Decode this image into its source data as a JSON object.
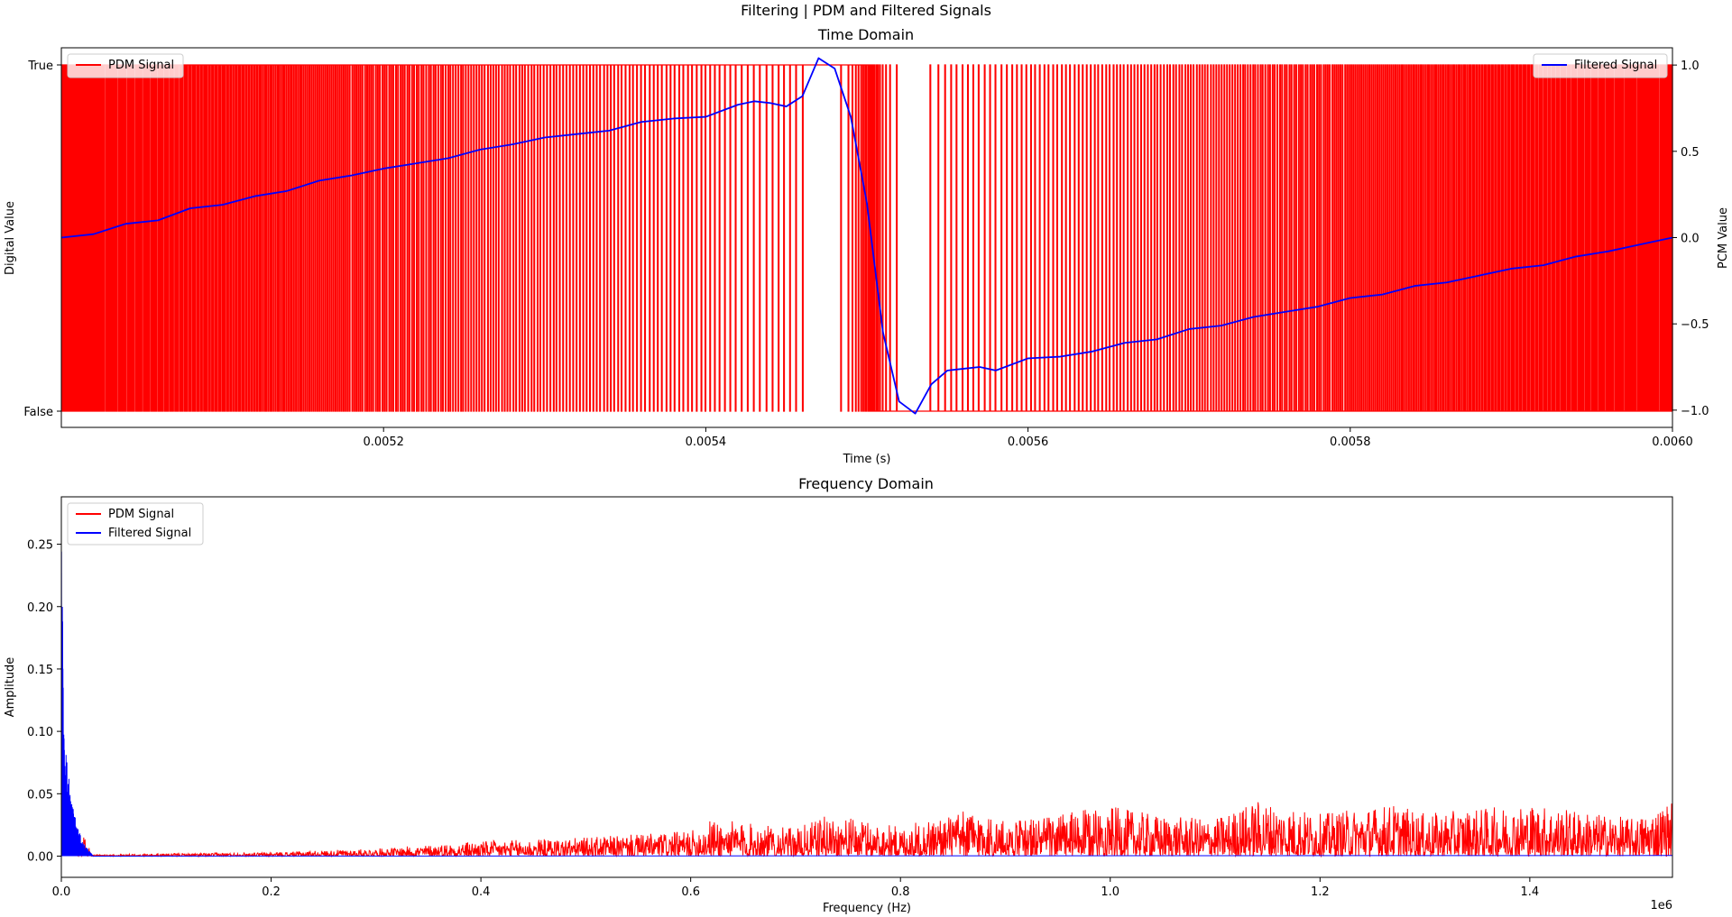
{
  "suptitle": "Filtering | PDM and Filtered Signals",
  "chart_data": [
    {
      "type": "line",
      "title": "Time Domain",
      "xlabel": "Time (s)",
      "ylabel": "Digital Value",
      "ylabel_right": "PCM Value",
      "xlim": [
        0.005,
        0.006
      ],
      "xticks": [
        "0.0052",
        "0.0054",
        "0.0056",
        "0.0058",
        "0.0060"
      ],
      "yticks_left": [
        "False",
        "True"
      ],
      "ylim_right": [
        -1.1,
        1.1
      ],
      "yticks_right": [
        "−1.0",
        "−0.5",
        "0.0",
        "0.5",
        "1.0"
      ],
      "legend_left": "upper-left",
      "legend_right": "upper-right",
      "series": [
        {
          "name": "PDM Signal",
          "color": "#ff0000",
          "kind": "digital",
          "note_density": "mostly_true_then_mostly_false"
        },
        {
          "name": "Filtered Signal",
          "color": "#0000ff",
          "x": [
            0.005,
            0.00502,
            0.00504,
            0.00506,
            0.00508,
            0.0051,
            0.00512,
            0.00514,
            0.00516,
            0.00518,
            0.0052,
            0.00522,
            0.00524,
            0.00526,
            0.00528,
            0.0053,
            0.00532,
            0.00534,
            0.00536,
            0.00538,
            0.0054,
            0.00542,
            0.00543,
            0.00544,
            0.00545,
            0.00546,
            0.00547,
            0.00548,
            0.00549,
            0.0055,
            0.00551,
            0.00552,
            0.00553,
            0.00554,
            0.00555,
            0.00556,
            0.00557,
            0.00558,
            0.0056,
            0.00562,
            0.00564,
            0.00566,
            0.00568,
            0.0057,
            0.00572,
            0.00574,
            0.00576,
            0.00578,
            0.0058,
            0.00582,
            0.00584,
            0.00586,
            0.00588,
            0.0059,
            0.00592,
            0.00594,
            0.00596,
            0.00598,
            0.006
          ],
          "y": [
            0.0,
            0.02,
            0.08,
            0.1,
            0.17,
            0.19,
            0.24,
            0.27,
            0.33,
            0.36,
            0.4,
            0.43,
            0.46,
            0.51,
            0.54,
            0.58,
            0.6,
            0.62,
            0.67,
            0.69,
            0.7,
            0.77,
            0.79,
            0.78,
            0.76,
            0.82,
            1.04,
            0.98,
            0.7,
            0.2,
            -0.55,
            -0.95,
            -1.02,
            -0.85,
            -0.77,
            -0.76,
            -0.75,
            -0.77,
            -0.7,
            -0.69,
            -0.66,
            -0.61,
            -0.59,
            -0.53,
            -0.51,
            -0.46,
            -0.43,
            -0.4,
            -0.35,
            -0.33,
            -0.28,
            -0.26,
            -0.22,
            -0.18,
            -0.16,
            -0.11,
            -0.08,
            -0.04,
            0.0
          ]
        }
      ]
    },
    {
      "type": "line",
      "title": "Frequency Domain",
      "xlabel": "Frequency (Hz)",
      "ylabel": "Amplitude",
      "x_offset_label": "1e6",
      "xlim": [
        0,
        1.536
      ],
      "ylim": [
        -0.017,
        0.288
      ],
      "xticks": [
        "0.0",
        "0.2",
        "0.4",
        "0.6",
        "0.8",
        "1.0",
        "1.2",
        "1.4"
      ],
      "yticks": [
        "0.00",
        "0.05",
        "0.10",
        "0.15",
        "0.20",
        "0.25"
      ],
      "legend": "upper-left",
      "series": [
        {
          "name": "PDM Signal",
          "color": "#ff0000",
          "envelope_x": [
            0.0,
            0.02,
            0.03,
            0.1,
            0.2,
            0.3,
            0.4,
            0.5,
            0.6,
            0.62,
            0.7,
            0.73,
            0.8,
            0.87,
            0.9,
            1.0,
            1.05,
            1.1,
            1.14,
            1.2,
            1.27,
            1.3,
            1.4,
            1.5,
            1.536
          ],
          "envelope_y": [
            0.05,
            0.02,
            0.001,
            0.002,
            0.003,
            0.006,
            0.012,
            0.015,
            0.02,
            0.03,
            0.022,
            0.033,
            0.024,
            0.038,
            0.028,
            0.04,
            0.032,
            0.03,
            0.045,
            0.034,
            0.042,
            0.034,
            0.042,
            0.03,
            0.045
          ]
        },
        {
          "name": "Filtered Signal",
          "color": "#0000ff",
          "envelope_x": [
            0.0,
            0.002,
            0.005,
            0.01,
            0.015,
            0.02,
            0.03,
            1.536
          ],
          "envelope_y": [
            0.28,
            0.14,
            0.08,
            0.045,
            0.025,
            0.012,
            0.0005,
            0.0005
          ]
        }
      ]
    }
  ]
}
